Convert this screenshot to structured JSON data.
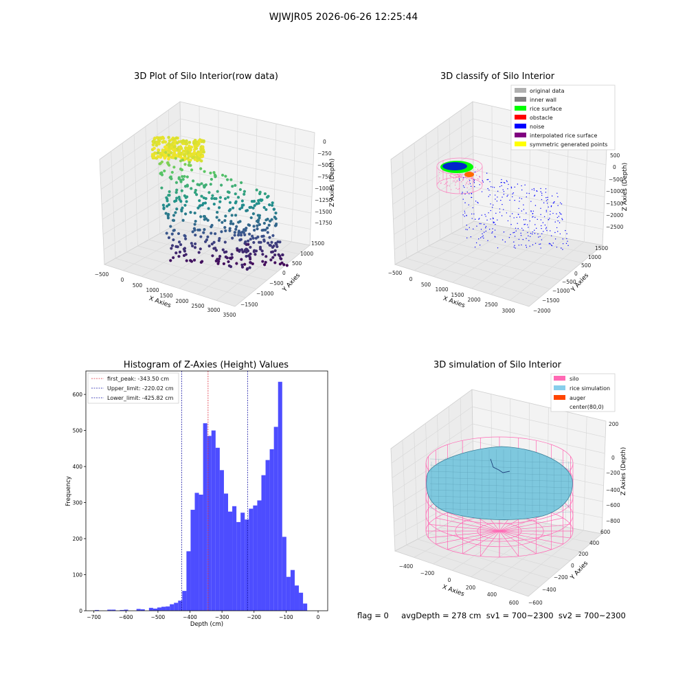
{
  "figure": {
    "suptitle": "WJWJR05 2026-06-26 12:25:44",
    "bottom_status": "flag = 0     avgDepth = 278 cm  sv1 = 700~2300  sv2 = 700~2300"
  },
  "colors": {
    "histogram_bar": "#4d4dff",
    "first_peak_line": "#e0303f",
    "limit_line": "#1a1aa6",
    "silo": "#ff69b4",
    "rice_simulation": "#87ceeb",
    "auger": "#ff4500",
    "noise": "#0000ff",
    "rice_surface": "#00ff00",
    "obstacle": "#ff0000",
    "original_data": "#b0b0b0",
    "inner_wall": "#808080",
    "interpolated_rice_surface": "#800080",
    "symmetric_generated_points": "#ffff00"
  },
  "chart_data": [
    {
      "type": "scatter",
      "title": "3D Plot of Silo Interior(row data)",
      "xlabel": "X Axies",
      "ylabel": "Y Axies",
      "zlabel": "Z Axies (Depth)",
      "x_ticks": [
        "−500",
        "0",
        "500",
        "1000",
        "1500",
        "2000",
        "2500",
        "3000",
        "3500"
      ],
      "y_ticks": [
        "1500",
        "1000",
        "500",
        "0",
        "−500",
        "−1000",
        "−1500"
      ],
      "z_ticks": [
        "0",
        "−250",
        "−500",
        "−750",
        "−1000",
        "−1250",
        "−1500",
        "−1750"
      ],
      "colormap": "viridis"
    },
    {
      "type": "scatter",
      "title": "3D classify of Silo Interior",
      "xlabel": "X Axies",
      "ylabel": "Y Axies",
      "zlabel": "Z Axies (Depth)",
      "x_ticks": [
        "−500",
        "0",
        "500",
        "1000",
        "1500",
        "2000",
        "2500",
        "3000"
      ],
      "y_ticks": [
        "1500",
        "1000",
        "500",
        "0",
        "−500",
        "−1000",
        "−1500",
        "−2000"
      ],
      "z_ticks": [
        "500",
        "0",
        "−500",
        "−1000",
        "−1500",
        "−2000",
        "−2500"
      ],
      "legend": [
        {
          "label": "original data",
          "color": "#b0b0b0"
        },
        {
          "label": "inner wall",
          "color": "#808080"
        },
        {
          "label": "rice surface",
          "color": "#00ff00"
        },
        {
          "label": "obstacle",
          "color": "#ff0000"
        },
        {
          "label": "noise",
          "color": "#0000ff"
        },
        {
          "label": "interpolated rice surface",
          "color": "#800080"
        },
        {
          "label": "symmetric generated points",
          "color": "#ffff00"
        }
      ]
    },
    {
      "type": "bar",
      "title": "Histogram of Z-Axies (Height) Values",
      "xlabel": "Depth (cm)",
      "ylabel": "Frequency",
      "xlim": [
        -725,
        30
      ],
      "ylim": [
        0,
        665
      ],
      "x_ticks": [
        -700,
        -600,
        -500,
        -400,
        -300,
        -200,
        -100,
        0
      ],
      "x_tick_labels": [
        "−700",
        "−600",
        "−500",
        "−400",
        "−300",
        "−200",
        "−100",
        "0"
      ],
      "y_ticks": [
        0,
        100,
        200,
        300,
        400,
        500,
        600
      ],
      "bins": [
        [
          -697,
          -684,
          2
        ],
        [
          -658,
          -645,
          3
        ],
        [
          -645,
          -632,
          3
        ],
        [
          -619,
          -606,
          2
        ],
        [
          -606,
          -593,
          3
        ],
        [
          -567,
          -554,
          5
        ],
        [
          -554,
          -541,
          4
        ],
        [
          -528,
          -515,
          8
        ],
        [
          -515,
          -502,
          6
        ],
        [
          -502,
          -489,
          9
        ],
        [
          -489,
          -476,
          11
        ],
        [
          -476,
          -463,
          12
        ],
        [
          -463,
          -450,
          18
        ],
        [
          -450,
          -437,
          22
        ],
        [
          -437,
          -424,
          28
        ],
        [
          -424,
          -411,
          55
        ],
        [
          -411,
          -398,
          165
        ],
        [
          -398,
          -385,
          280
        ],
        [
          -385,
          -372,
          327
        ],
        [
          -372,
          -359,
          322
        ],
        [
          -359,
          -346,
          520
        ],
        [
          -346,
          -333,
          485
        ],
        [
          -333,
          -320,
          500
        ],
        [
          -320,
          -307,
          452
        ],
        [
          -307,
          -294,
          390
        ],
        [
          -294,
          -281,
          325
        ],
        [
          -281,
          -268,
          275
        ],
        [
          -268,
          -255,
          290
        ],
        [
          -255,
          -242,
          246
        ],
        [
          -242,
          -229,
          272
        ],
        [
          -229,
          -216,
          253
        ],
        [
          -216,
          -203,
          283
        ],
        [
          -203,
          -190,
          292
        ],
        [
          -190,
          -177,
          306
        ],
        [
          -177,
          -164,
          376
        ],
        [
          -164,
          -151,
          418
        ],
        [
          -151,
          -138,
          448
        ],
        [
          -138,
          -125,
          510
        ],
        [
          -125,
          -112,
          635
        ],
        [
          -112,
          -99,
          205
        ],
        [
          -99,
          -86,
          94
        ],
        [
          -86,
          -73,
          113
        ],
        [
          -73,
          -60,
          70
        ],
        [
          -60,
          -47,
          50
        ],
        [
          -47,
          -34,
          20
        ]
      ],
      "vlines": [
        {
          "label": "first_peak: -343.50 cm",
          "x": -343.5,
          "color": "#e0303f"
        },
        {
          "label": "Upper_limit: -220.02 cm",
          "x": -220.02,
          "color": "#1a1aa6"
        },
        {
          "label": "Lower_limit: -425.82 cm",
          "x": -425.82,
          "color": "#1a1aa6"
        }
      ]
    },
    {
      "type": "surface",
      "title": "3D simulation of Silo Interior",
      "xlabel": "X Axies",
      "ylabel": "Y Axies",
      "zlabel": "Z Axies (Depth)",
      "x_ticks": [
        "−400",
        "−200",
        "0",
        "200",
        "400",
        "600"
      ],
      "y_ticks": [
        "600",
        "400",
        "200",
        "0",
        "−200",
        "−400",
        "−600"
      ],
      "z_ticks": [
        "200",
        "0",
        "−200",
        "−400",
        "−600",
        "−800"
      ],
      "legend": [
        {
          "label": "silo",
          "color": "#ff69b4"
        },
        {
          "label": "rice simulation",
          "color": "#87ceeb"
        },
        {
          "label": "auger",
          "color": "#ff4500"
        },
        {
          "label": "center(80,0)",
          "color": ""
        }
      ]
    }
  ]
}
